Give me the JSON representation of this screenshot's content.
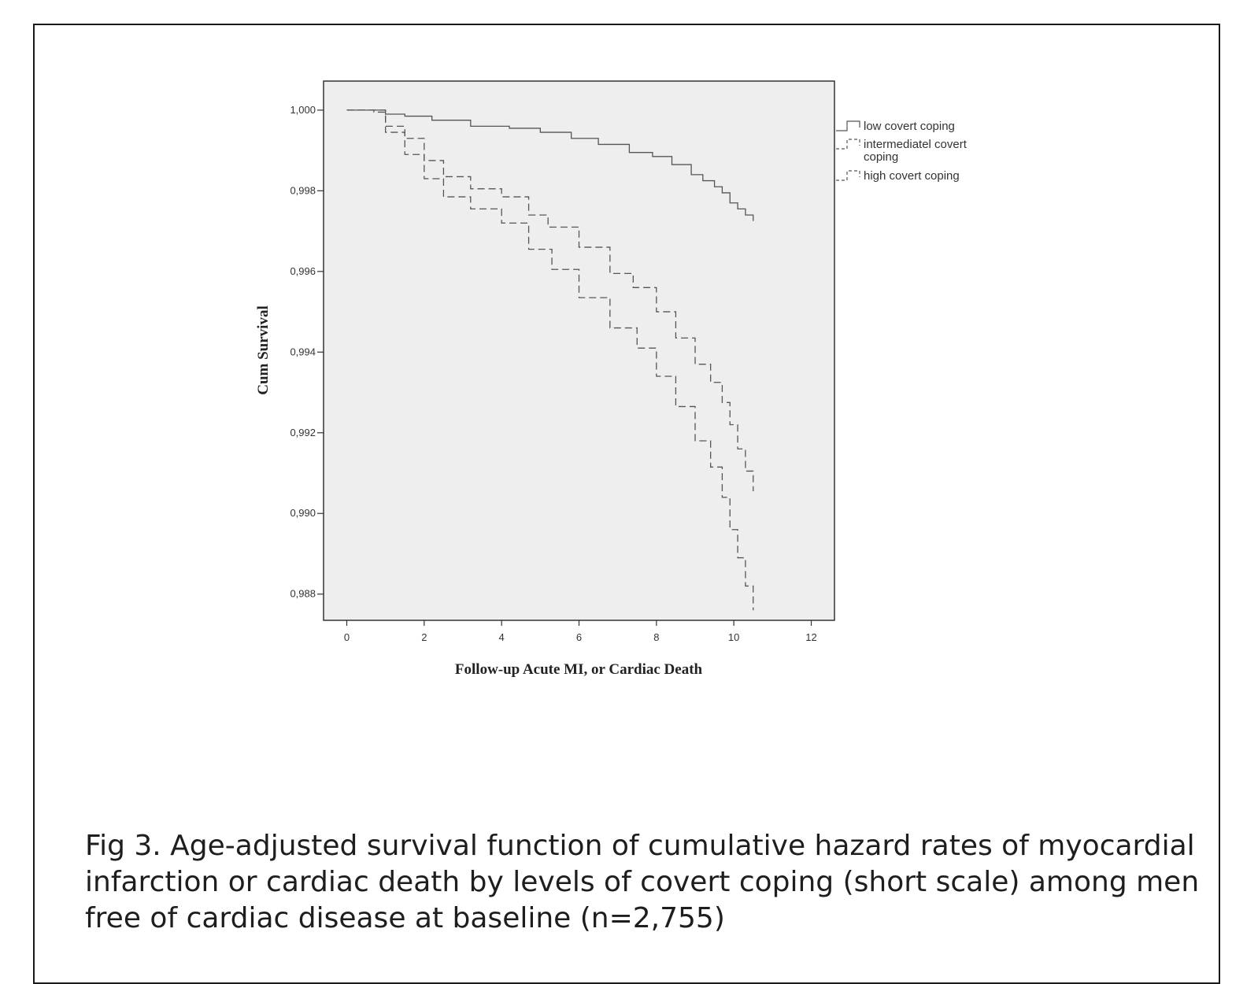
{
  "chart_data": {
    "type": "line",
    "xlabel": "Follow-up Acute MI, or Cardiac Death",
    "ylabel": "Cum Survival",
    "xlim": [
      -0.6,
      12.6
    ],
    "ylim": [
      0.98735,
      1.00072
    ],
    "x_ticks": [
      0,
      2,
      4,
      6,
      8,
      10,
      12
    ],
    "x_tick_labels": [
      "0",
      "2",
      "4",
      "6",
      "8",
      "10",
      "12"
    ],
    "y_ticks": [
      1.0,
      0.998,
      0.996,
      0.994,
      0.992,
      0.99,
      0.988
    ],
    "y_tick_labels": [
      "1,000",
      "0,998",
      "0,996",
      "0,994",
      "0,992",
      "0,990",
      "0,988"
    ],
    "grid": false,
    "legend_position": "right",
    "series": [
      {
        "name": "low  covert coping",
        "style": "solid",
        "x": [
          0,
          0.7,
          1.0,
          1.5,
          2.2,
          3.2,
          4.2,
          5.0,
          5.8,
          6.5,
          7.3,
          7.9,
          8.4,
          8.9,
          9.2,
          9.5,
          9.7,
          9.9,
          10.1,
          10.3,
          10.5
        ],
        "y": [
          1.0,
          1.0,
          0.9999,
          0.99985,
          0.99975,
          0.9996,
          0.99955,
          0.99945,
          0.9993,
          0.99915,
          0.99895,
          0.99885,
          0.99865,
          0.9984,
          0.99825,
          0.9981,
          0.99795,
          0.9977,
          0.99755,
          0.9974,
          0.99725
        ]
      },
      {
        "name": "intermediatel covert coping",
        "style": "dashed",
        "x": [
          0,
          0.7,
          1.0,
          1.5,
          2.0,
          2.5,
          3.2,
          4.0,
          4.7,
          5.2,
          6.0,
          6.8,
          7.4,
          8.0,
          8.5,
          9.0,
          9.4,
          9.7,
          9.9,
          10.1,
          10.3,
          10.5
        ],
        "y": [
          1.0,
          1.0,
          0.9996,
          0.9993,
          0.99875,
          0.99835,
          0.99805,
          0.99785,
          0.9974,
          0.9971,
          0.9966,
          0.99595,
          0.9956,
          0.995,
          0.99435,
          0.9937,
          0.99325,
          0.99275,
          0.9922,
          0.9916,
          0.99105,
          0.99055
        ]
      },
      {
        "name": "high covert coping",
        "style": "dashed",
        "x": [
          0,
          0.7,
          1.0,
          1.5,
          2.0,
          2.5,
          3.2,
          4.0,
          4.7,
          5.3,
          6.0,
          6.8,
          7.5,
          8.0,
          8.5,
          9.0,
          9.4,
          9.7,
          9.9,
          10.1,
          10.3,
          10.5
        ],
        "y": [
          1.0,
          0.99995,
          0.99945,
          0.9989,
          0.9983,
          0.99785,
          0.99755,
          0.9972,
          0.99655,
          0.99605,
          0.99535,
          0.9946,
          0.9941,
          0.9934,
          0.99265,
          0.9918,
          0.99115,
          0.9904,
          0.9896,
          0.9889,
          0.9882,
          0.9876
        ]
      }
    ]
  },
  "caption": {
    "text": "Fig 3. Age-adjusted survival function of cumulative hazard rates of  myocardial infarction or cardiac death by levels of covert coping (short scale) among men free of cardiac disease at baseline (n=2,755)"
  }
}
